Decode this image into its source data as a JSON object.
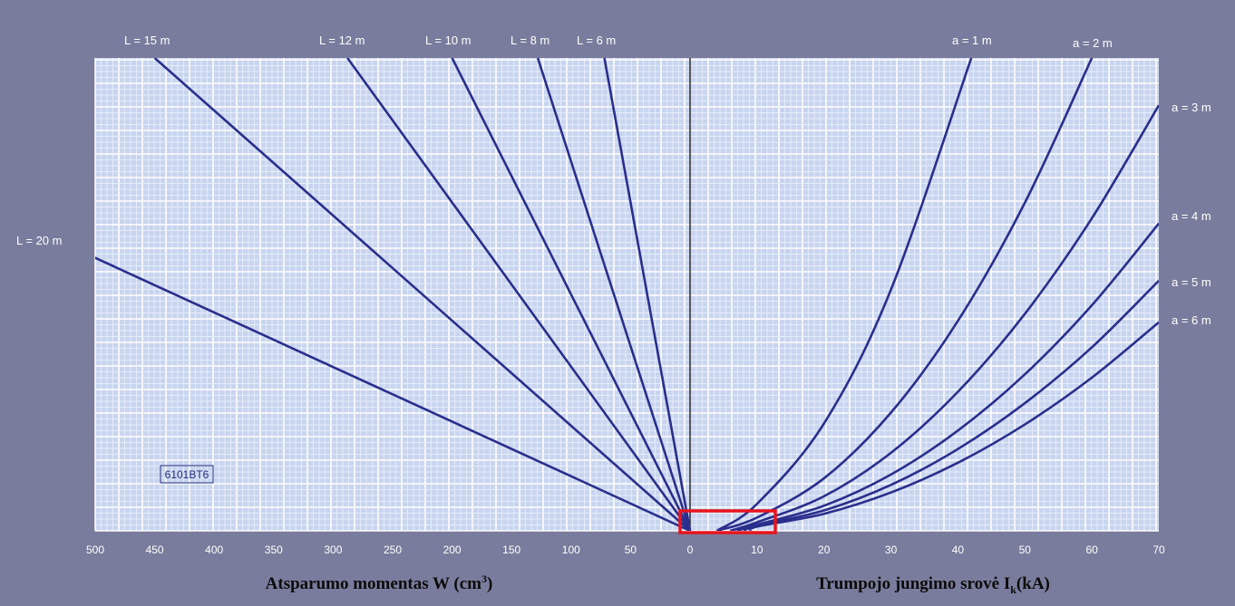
{
  "chart_data": {
    "type": "line",
    "colors": {
      "background": "#7a7c9d",
      "plot_background": "#c9d5ef",
      "grid_minor": "#eef3ff",
      "grid_major": "#ffffff",
      "curve": "#2a2e8c",
      "center_line": "#1a1a1a",
      "highlight_box": "#e8141c"
    },
    "left_panel": {
      "xlabel": "Atsparumo momentas W (cm",
      "xlabel_sup": "3",
      "xlabel_end": ")",
      "xlim": [
        500,
        0
      ],
      "xticks": [
        500,
        450,
        400,
        350,
        300,
        250,
        200,
        150,
        100,
        50,
        0
      ],
      "series": [
        {
          "name": "L = 20 m",
          "x": [
            0,
            550
          ],
          "y": [
            0,
            63.5
          ]
        },
        {
          "name": "L = 15 m",
          "x": [
            0,
            450
          ],
          "y": [
            0,
            100
          ]
        },
        {
          "name": "L = 12 m",
          "x": [
            0,
            288
          ],
          "y": [
            0,
            100
          ]
        },
        {
          "name": "L = 10 m",
          "x": [
            0,
            200
          ],
          "y": [
            0,
            100
          ]
        },
        {
          "name": "L = 8 m",
          "x": [
            0,
            128
          ],
          "y": [
            0,
            100
          ]
        },
        {
          "name": "L = 6 m",
          "x": [
            0,
            72
          ],
          "y": [
            0,
            100
          ]
        }
      ]
    },
    "right_panel": {
      "xlabel": "Trumpojo jungimo srovė I",
      "xlabel_sub": "k",
      "xlabel_end": "(kA)",
      "xlim": [
        0,
        70
      ],
      "xticks": [
        0,
        10,
        20,
        30,
        40,
        50,
        60,
        70
      ],
      "series": [
        {
          "name": "a = 1 m",
          "x": [
            4,
            10,
            20,
            30,
            42
          ],
          "y": [
            0,
            5.7,
            22.7,
            51.0,
            100
          ]
        },
        {
          "name": "a = 2 m",
          "x": [
            4,
            10,
            20,
            30,
            40,
            50,
            60
          ],
          "y": [
            0,
            2.8,
            11.1,
            25.0,
            44.4,
            69.4,
            100
          ]
        },
        {
          "name": "a = 3 m",
          "x": [
            6,
            10,
            20,
            30,
            40,
            50,
            60,
            70
          ],
          "y": [
            0,
            1.8,
            7.3,
            16.5,
            29.4,
            45.9,
            66.1,
            90.0
          ]
        },
        {
          "name": "a = 4 m",
          "x": [
            7,
            10,
            20,
            30,
            40,
            50,
            60,
            70
          ],
          "y": [
            0,
            1.3,
            5.3,
            11.9,
            21.2,
            33.1,
            47.7,
            65.0
          ]
        },
        {
          "name": "a = 5 m",
          "x": [
            8,
            10,
            20,
            30,
            40,
            50,
            60,
            70
          ],
          "y": [
            0,
            1.1,
            4.3,
            9.7,
            17.3,
            27.0,
            38.8,
            52.9
          ]
        },
        {
          "name": "a = 6 m",
          "x": [
            9,
            10,
            20,
            30,
            40,
            50,
            60,
            70
          ],
          "y": [
            0,
            0.9,
            3.6,
            8.1,
            14.4,
            22.5,
            32.4,
            44.1
          ]
        }
      ]
    },
    "grid": true,
    "stamp": "6101BT6",
    "annotation": "red rectangle around origin region (left 0–5, right 0–13 kA)"
  }
}
